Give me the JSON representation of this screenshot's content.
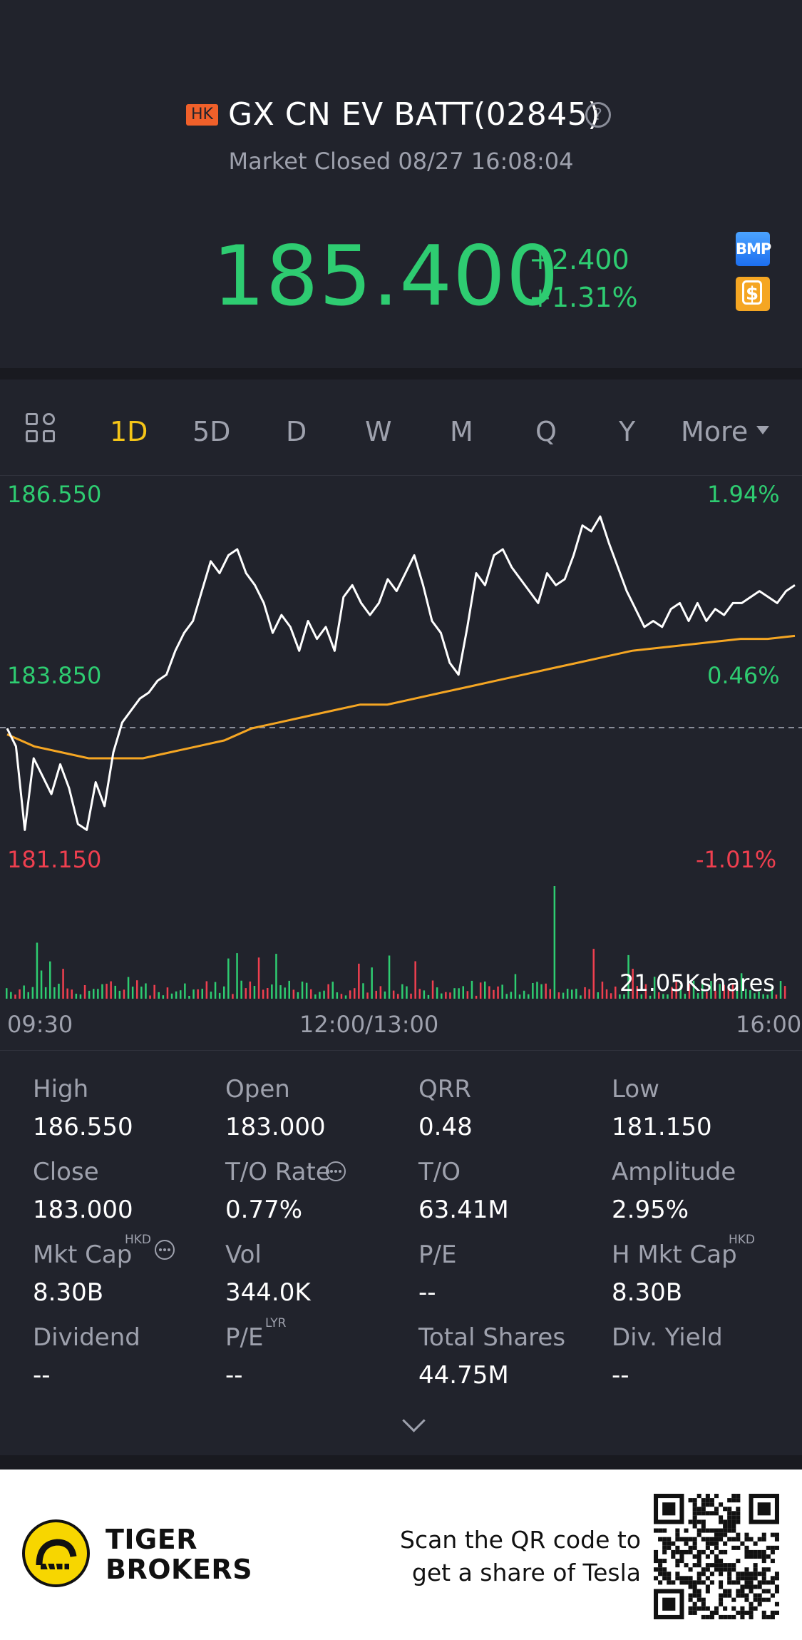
{
  "header": {
    "market_badge": "HK",
    "title": "GX CN EV BATT(02845)",
    "status": "Market Closed 08/27 16:08:04",
    "price": "185.400",
    "change": "+2.400",
    "change_pct": "+1.31%",
    "bmp_badge": "BMP",
    "dollar_badge": "$"
  },
  "tabs": {
    "items": [
      "1D",
      "5D",
      "D",
      "W",
      "M",
      "Q",
      "Y"
    ],
    "active": "1D",
    "more": "More"
  },
  "chart": {
    "price_high": "186.550",
    "price_mid": "183.850",
    "price_low": "181.150",
    "pct_high": "1.94%",
    "pct_mid": "0.46%",
    "pct_low": "-1.01%",
    "volume_label": "21.05Kshares",
    "time_start": "09:30",
    "time_mid": "12:00/13:00",
    "time_end": "16:00",
    "colors": {
      "price_line": "#ffffff",
      "avg_line": "#f5a623",
      "up": "#2ecc71",
      "down": "#ef3f4f"
    }
  },
  "chart_data": {
    "type": "line",
    "series": [],
    "x_range": [
      "09:30",
      "16:00"
    ],
    "ylim": [
      181.15,
      186.55
    ],
    "prev_close": 183.0,
    "price": [
      183.0,
      182.7,
      181.3,
      182.5,
      182.2,
      181.9,
      182.4,
      182.0,
      181.4,
      181.3,
      182.1,
      181.7,
      182.6,
      183.1,
      183.3,
      183.5,
      183.6,
      183.8,
      183.9,
      184.3,
      184.6,
      184.8,
      185.3,
      185.8,
      185.6,
      185.9,
      186.0,
      185.6,
      185.4,
      185.1,
      184.6,
      184.9,
      184.7,
      184.3,
      184.8,
      184.5,
      184.7,
      184.3,
      185.2,
      185.4,
      185.1,
      184.9,
      185.1,
      185.5,
      185.3,
      185.6,
      185.9,
      185.4,
      184.8,
      184.6,
      184.1,
      183.9,
      184.7,
      185.6,
      185.4,
      185.9,
      186.0,
      185.7,
      185.5,
      185.3,
      185.1,
      185.6,
      185.4,
      185.5,
      185.9,
      186.4,
      186.3,
      186.55,
      186.1,
      185.7,
      185.3,
      185.0,
      184.7,
      184.8,
      184.7,
      185.0,
      185.1,
      184.8,
      185.1,
      184.8,
      185.0,
      184.9,
      185.1,
      185.1,
      185.2,
      185.3,
      185.2,
      185.1,
      185.3,
      185.4
    ],
    "avg": [
      182.9,
      182.7,
      182.6,
      182.5,
      182.5,
      182.5,
      182.6,
      182.7,
      182.8,
      183.0,
      183.1,
      183.2,
      183.3,
      183.4,
      183.4,
      183.5,
      183.6,
      183.7,
      183.8,
      183.9,
      184.0,
      184.1,
      184.2,
      184.3,
      184.35,
      184.4,
      184.45,
      184.5,
      184.5,
      184.55
    ],
    "volume_max_shares": "21.05K"
  },
  "stats": {
    "items": [
      {
        "label": "High",
        "value": "186.550"
      },
      {
        "label": "Open",
        "value": "183.000"
      },
      {
        "label": "QRR",
        "value": "0.48"
      },
      {
        "label": "Low",
        "value": "181.150"
      },
      {
        "label": "Close",
        "value": "183.000"
      },
      {
        "label": "T/O Rate",
        "value": "0.77%"
      },
      {
        "label": "T/O",
        "value": "63.41M"
      },
      {
        "label": "Amplitude",
        "value": "2.95%"
      },
      {
        "label": "Mkt Cap",
        "value": "8.30B"
      },
      {
        "label": "Vol",
        "value": "344.0K"
      },
      {
        "label": "P/E",
        "value": "--"
      },
      {
        "label": "H Mkt Cap",
        "value": "8.30B"
      },
      {
        "label": "Dividend",
        "value": "--"
      },
      {
        "label": "P/E",
        "value": "--"
      },
      {
        "label": "Total Shares",
        "value": "44.75M"
      },
      {
        "label": "Div. Yield",
        "value": "--"
      }
    ],
    "mkt_cap_unit": "HKD",
    "h_mkt_cap_unit": "HKD",
    "pe_sup": "LYR"
  },
  "footer": {
    "brand_line1": "TIGER",
    "brand_line2": "BROKERS",
    "scan_line1": "Scan the QR code to",
    "scan_line2": "get a share of Tesla"
  }
}
